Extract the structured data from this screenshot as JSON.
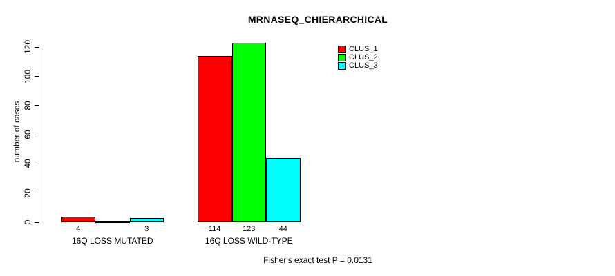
{
  "title": "MRNASEQ_CHIERARCHICAL",
  "colors": {
    "background": "#ffffff",
    "axis": "#000000",
    "clus_1": "#ff0000",
    "clus_2": "#00ff00",
    "clus_3": "#00ffff"
  },
  "chart_data": {
    "type": "bar",
    "title": "MRNASEQ_CHIERARCHICAL",
    "xlabel": "",
    "ylabel": "number of cases",
    "categories": [
      "16Q LOSS MUTATED",
      "16Q LOSS WILD-TYPE"
    ],
    "series": [
      {
        "name": "CLUS_1",
        "color": "#ff0000",
        "values": [
          4,
          114
        ]
      },
      {
        "name": "CLUS_2",
        "color": "#00ff00",
        "values": [
          0,
          123
        ]
      },
      {
        "name": "CLUS_3",
        "color": "#00ffff",
        "values": [
          3,
          44
        ]
      }
    ],
    "bar_value_labels": [
      [
        "4",
        "",
        "3"
      ],
      [
        "114",
        "123",
        "44"
      ]
    ],
    "yticks": [
      0,
      20,
      40,
      60,
      80,
      100,
      120
    ],
    "ylim": [
      0,
      124
    ],
    "grid": false,
    "legend": {
      "position": "top-right-inside",
      "entries": [
        "CLUS_1",
        "CLUS_2",
        "CLUS_3"
      ]
    },
    "annotation": "Fisher's exact test P = 0.0131"
  }
}
